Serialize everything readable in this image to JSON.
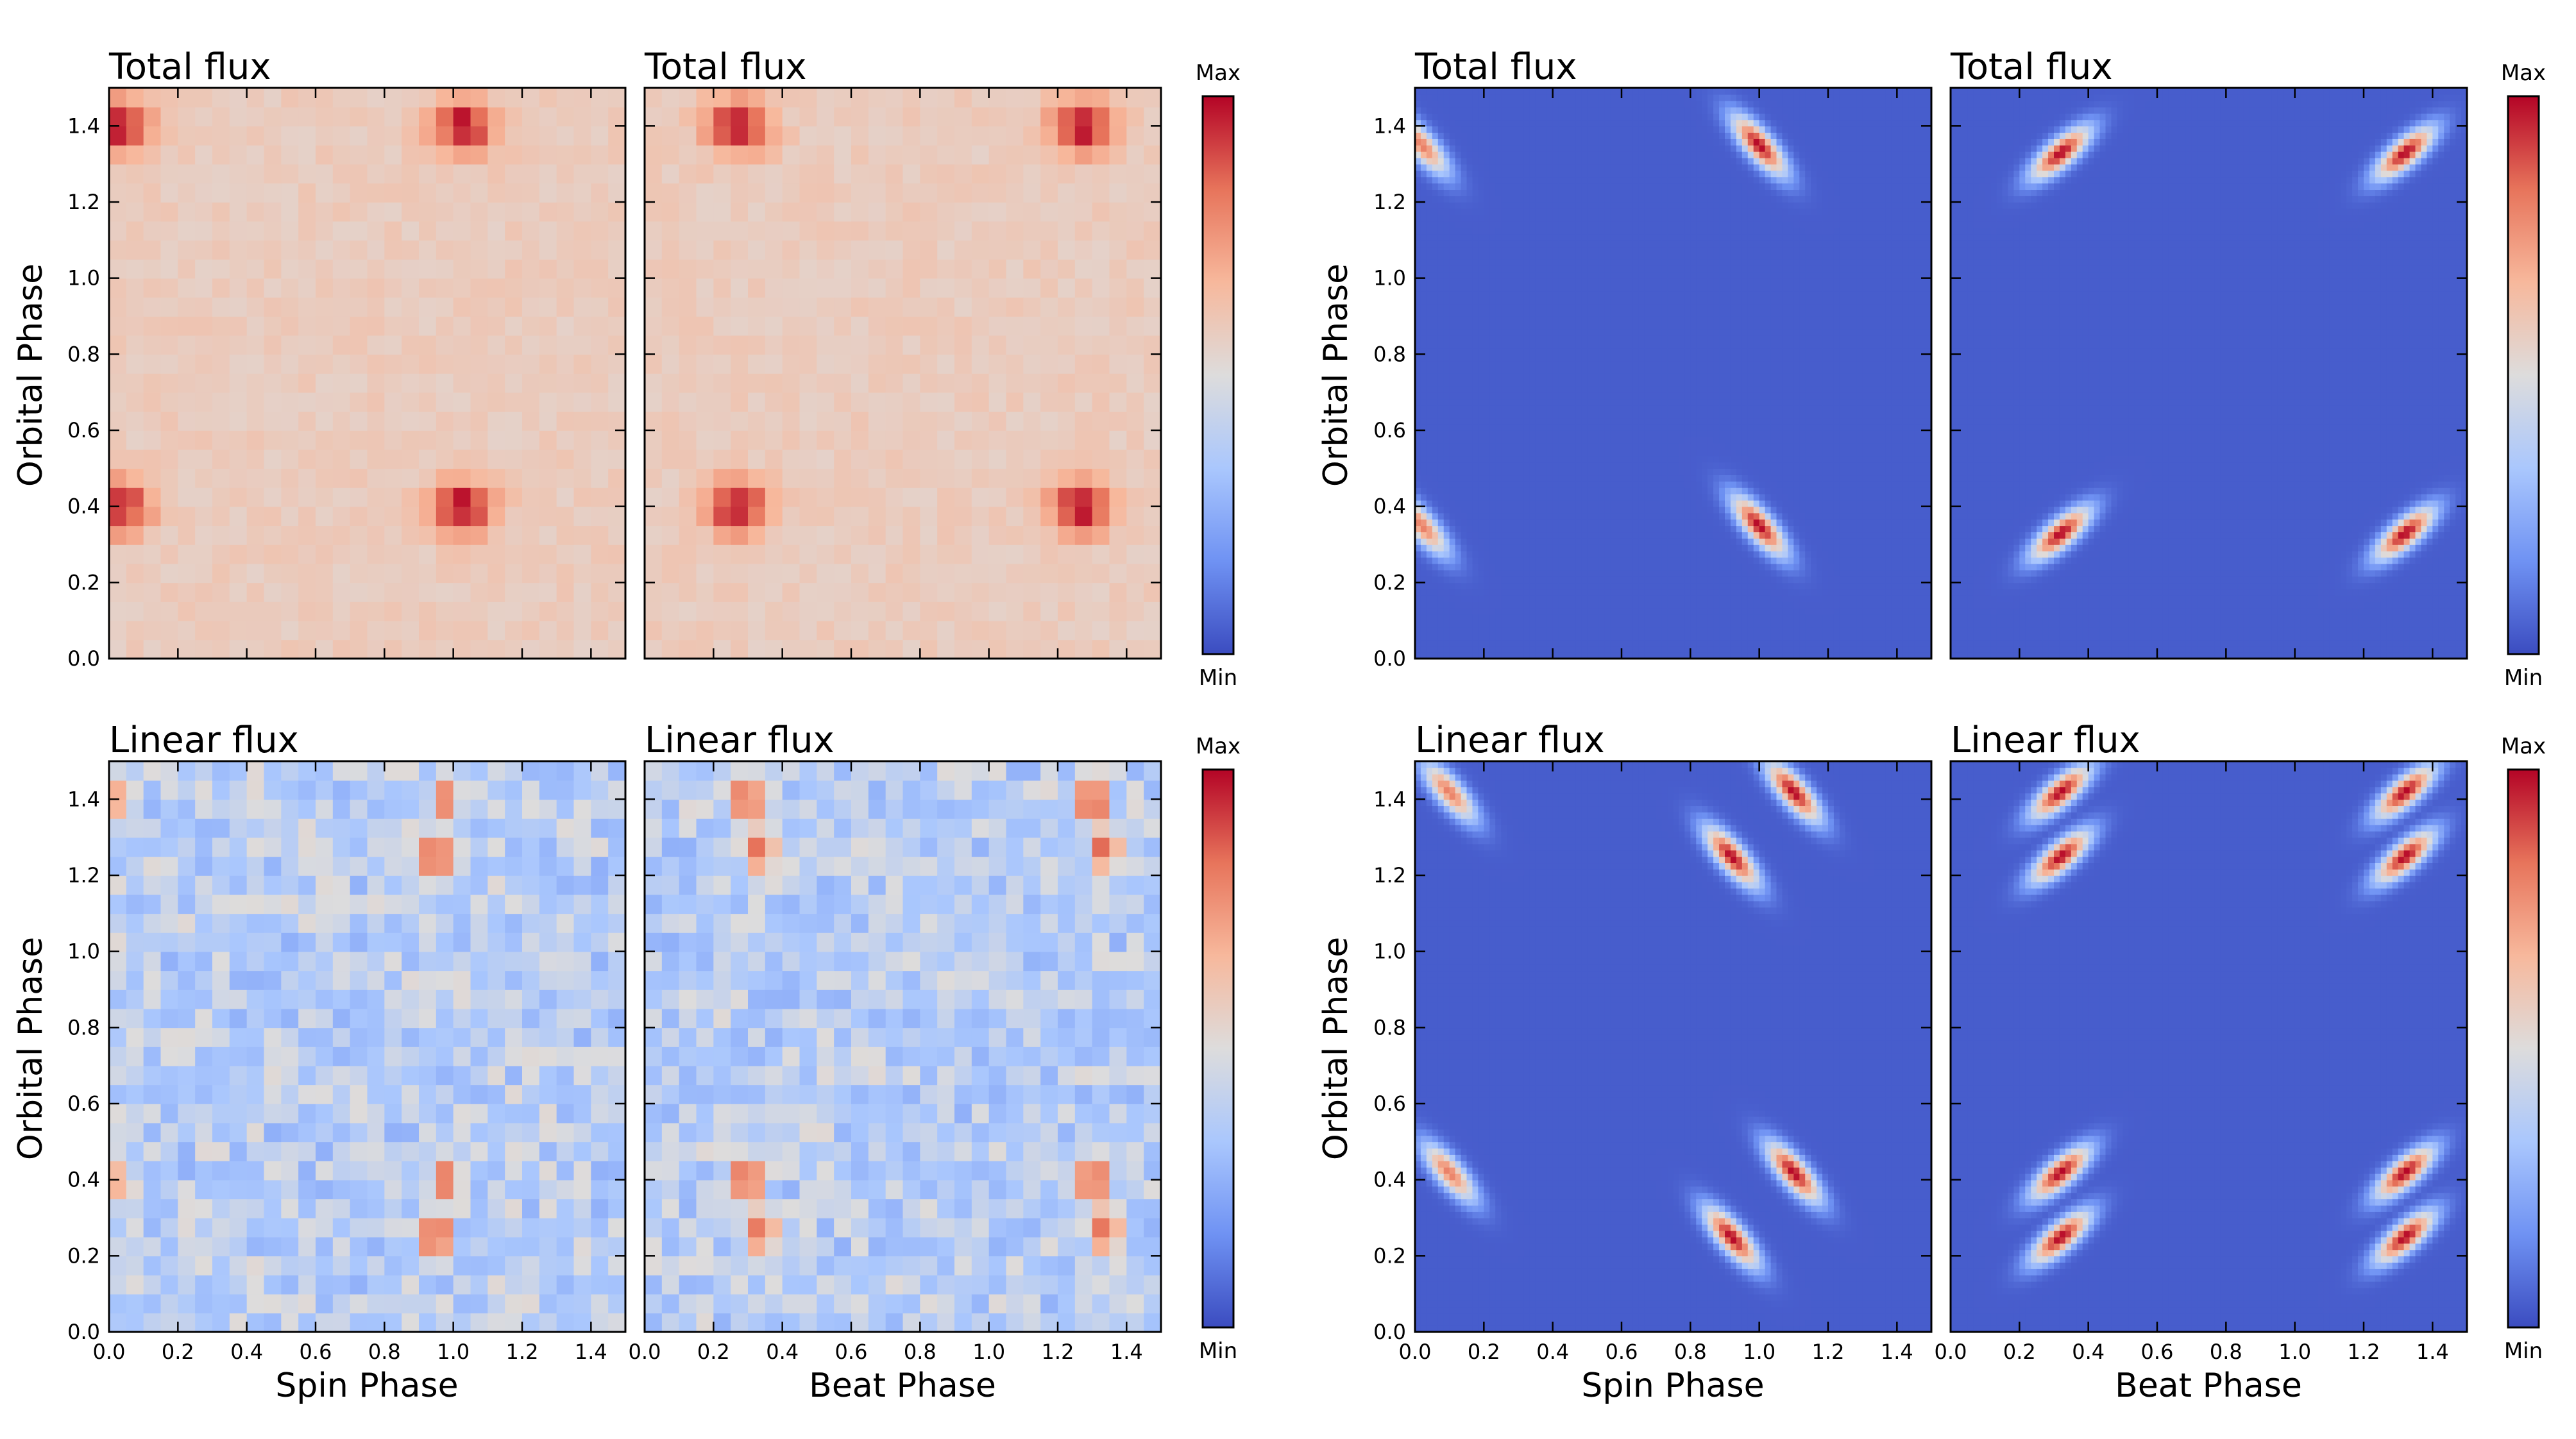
{
  "figure": {
    "xlabel_spin": "Spin Phase",
    "xlabel_beat": "Beat Phase",
    "ylabel": "Orbital Phase",
    "colorbar_max": "Max",
    "colorbar_min": "Min",
    "colormap_colors": [
      "#3b4cc0",
      "#6f92f3",
      "#aac7fd",
      "#dddcdc",
      "#f7b89c",
      "#e7745b",
      "#b40426"
    ]
  },
  "chart_data": [
    {
      "id": "p1",
      "type": "heatmap",
      "style": "pixel",
      "title": "Total flux",
      "xlabel": "",
      "ylabel": "Orbital Phase",
      "xlim": [
        0,
        1.5
      ],
      "ylim": [
        0,
        1.5
      ],
      "xticks": [],
      "yticks": [
        "0.0",
        "0.2",
        "0.4",
        "0.6",
        "0.8",
        "1.0",
        "1.2",
        "1.4"
      ],
      "description": "Observed total flux vs spin and orbital phase; peaks near spin 0.0/1.0 at orbital 0.4 and 1.4",
      "peaks": [
        {
          "x": 0.03,
          "y": 0.4,
          "v": 0.95
        },
        {
          "x": 1.03,
          "y": 0.4,
          "v": 1.0
        },
        {
          "x": 0.03,
          "y": 1.4,
          "v": 0.95
        },
        {
          "x": 1.03,
          "y": 1.4,
          "v": 1.0
        }
      ]
    },
    {
      "id": "p2",
      "type": "heatmap",
      "style": "pixel",
      "title": "Total flux",
      "xlabel": "",
      "ylabel": "",
      "xlim": [
        0,
        1.5
      ],
      "ylim": [
        0,
        1.5
      ],
      "xticks": [],
      "yticks": [],
      "description": "Observed total flux vs beat and orbital phase; peaks near beat 0.27/1.27 at orbital 0.4 and 1.4",
      "peaks": [
        {
          "x": 0.27,
          "y": 0.4,
          "v": 1.0
        },
        {
          "x": 1.27,
          "y": 0.4,
          "v": 1.0
        },
        {
          "x": 0.27,
          "y": 1.4,
          "v": 1.0
        },
        {
          "x": 1.27,
          "y": 1.4,
          "v": 1.0
        }
      ]
    },
    {
      "id": "p3",
      "type": "heatmap",
      "style": "smooth",
      "title": "Total flux",
      "xlabel": "",
      "ylabel": "Orbital Phase",
      "xlim": [
        0,
        1.5
      ],
      "ylim": [
        0,
        1.5
      ],
      "xticks": [],
      "yticks": [
        "0.0",
        "0.2",
        "0.4",
        "0.6",
        "0.8",
        "1.0",
        "1.2",
        "1.4"
      ],
      "description": "Model total flux vs spin phase; diagonal peaks",
      "peaks": [
        {
          "x": 1.0,
          "y": 0.35,
          "v": 1.0
        },
        {
          "x": 0.02,
          "y": 0.35,
          "v": 0.8
        },
        {
          "x": 1.0,
          "y": 1.35,
          "v": 1.0
        },
        {
          "x": 0.02,
          "y": 1.35,
          "v": 0.8
        }
      ]
    },
    {
      "id": "p4",
      "type": "heatmap",
      "style": "smooth",
      "title": "Total flux",
      "xlabel": "",
      "ylabel": "",
      "xlim": [
        0,
        1.5
      ],
      "ylim": [
        0,
        1.5
      ],
      "xticks": [],
      "yticks": [],
      "description": "Model total flux vs beat phase; peaks at beat 0.32/1.32",
      "peaks": [
        {
          "x": 0.32,
          "y": 0.33,
          "v": 1.0
        },
        {
          "x": 1.32,
          "y": 0.33,
          "v": 1.0
        },
        {
          "x": 0.32,
          "y": 1.33,
          "v": 1.0
        },
        {
          "x": 1.32,
          "y": 1.33,
          "v": 1.0
        }
      ]
    },
    {
      "id": "p5",
      "type": "heatmap",
      "style": "pixel",
      "title": "Linear flux",
      "xlabel": "Spin Phase",
      "ylabel": "Orbital Phase",
      "xlim": [
        0,
        1.5
      ],
      "ylim": [
        0,
        1.5
      ],
      "xticks": [
        "0.0",
        "0.2",
        "0.4",
        "0.6",
        "0.8",
        "1.0",
        "1.2",
        "1.4"
      ],
      "yticks": [
        "0.0",
        "0.2",
        "0.4",
        "0.6",
        "0.8",
        "1.0",
        "1.2",
        "1.4"
      ],
      "description": "Observed linear flux vs spin phase; noisy with peaks near spin 0.95-1.0",
      "peaks": [
        {
          "x": 0.95,
          "y": 0.25,
          "v": 1.0
        },
        {
          "x": 0.98,
          "y": 0.4,
          "v": 0.75
        },
        {
          "x": 0.95,
          "y": 1.25,
          "v": 1.0
        },
        {
          "x": 0.98,
          "y": 1.4,
          "v": 0.75
        },
        {
          "x": 0.03,
          "y": 0.4,
          "v": 0.6
        },
        {
          "x": 0.03,
          "y": 1.4,
          "v": 0.6
        }
      ]
    },
    {
      "id": "p6",
      "type": "heatmap",
      "style": "pixel",
      "title": "Linear flux",
      "xlabel": "Beat Phase",
      "ylabel": "",
      "xlim": [
        0,
        1.5
      ],
      "ylim": [
        0,
        1.5
      ],
      "xticks": [
        "0.0",
        "0.2",
        "0.4",
        "0.6",
        "0.8",
        "1.0",
        "1.2",
        "1.4"
      ],
      "yticks": [],
      "description": "Observed linear flux vs beat phase; peaks near beat 0.3-0.35 and 1.3-1.35",
      "peaks": [
        {
          "x": 0.3,
          "y": 0.4,
          "v": 1.0
        },
        {
          "x": 0.34,
          "y": 0.27,
          "v": 0.85
        },
        {
          "x": 1.3,
          "y": 0.4,
          "v": 1.0
        },
        {
          "x": 1.34,
          "y": 0.27,
          "v": 0.85
        },
        {
          "x": 0.3,
          "y": 1.4,
          "v": 1.0
        },
        {
          "x": 0.34,
          "y": 1.27,
          "v": 0.85
        },
        {
          "x": 1.3,
          "y": 1.4,
          "v": 1.0
        },
        {
          "x": 1.34,
          "y": 1.27,
          "v": 0.85
        }
      ]
    },
    {
      "id": "p7",
      "type": "heatmap",
      "style": "smooth",
      "title": "Linear flux",
      "xlabel": "Spin Phase",
      "ylabel": "Orbital Phase",
      "xlim": [
        0,
        1.5
      ],
      "ylim": [
        0,
        1.5
      ],
      "xticks": [
        "0.0",
        "0.2",
        "0.4",
        "0.6",
        "0.8",
        "1.0",
        "1.2",
        "1.4"
      ],
      "yticks": [
        "0.0",
        "0.2",
        "0.4",
        "0.6",
        "0.8",
        "1.0",
        "1.2",
        "1.4"
      ],
      "description": "Model linear flux vs spin phase; double-lobed diagonal peaks",
      "peaks": [
        {
          "x": 0.92,
          "y": 0.25,
          "v": 1.0
        },
        {
          "x": 1.1,
          "y": 0.42,
          "v": 1.0
        },
        {
          "x": 0.1,
          "y": 0.42,
          "v": 0.8
        },
        {
          "x": 0.92,
          "y": 1.25,
          "v": 1.0
        },
        {
          "x": 1.1,
          "y": 1.42,
          "v": 1.0
        },
        {
          "x": 0.1,
          "y": 1.42,
          "v": 0.8
        }
      ]
    },
    {
      "id": "p8",
      "type": "heatmap",
      "style": "smooth",
      "title": "Linear flux",
      "xlabel": "Beat Phase",
      "ylabel": "",
      "xlim": [
        0,
        1.5
      ],
      "ylim": [
        0,
        1.5
      ],
      "xticks": [
        "0.0",
        "0.2",
        "0.4",
        "0.6",
        "0.8",
        "1.0",
        "1.2",
        "1.4"
      ],
      "yticks": [],
      "description": "Model linear flux vs beat phase; double-lobed peaks at beat 0.32/1.32",
      "peaks": [
        {
          "x": 0.32,
          "y": 0.25,
          "v": 1.0
        },
        {
          "x": 0.32,
          "y": 0.42,
          "v": 1.0
        },
        {
          "x": 1.32,
          "y": 0.25,
          "v": 1.0
        },
        {
          "x": 1.32,
          "y": 0.42,
          "v": 1.0
        },
        {
          "x": 0.32,
          "y": 1.25,
          "v": 1.0
        },
        {
          "x": 0.32,
          "y": 1.42,
          "v": 1.0
        },
        {
          "x": 1.32,
          "y": 1.25,
          "v": 1.0
        },
        {
          "x": 1.32,
          "y": 1.42,
          "v": 1.0
        }
      ]
    }
  ]
}
